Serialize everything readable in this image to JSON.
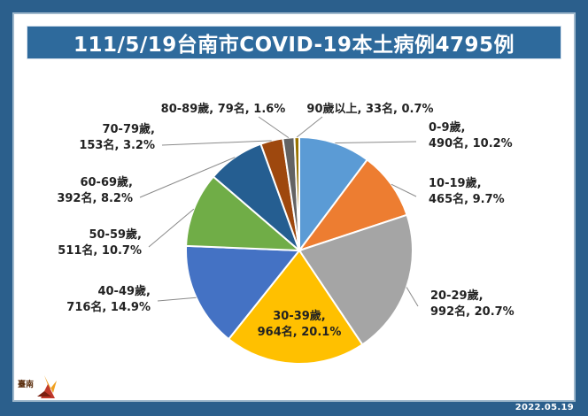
{
  "title": "111/5/19台南市COVID-19本土病例4795例",
  "date": "2022.05.19",
  "logo_text": "臺南",
  "chart_data": {
    "type": "pie",
    "title": "111/5/19台南市COVID-19本土病例4795例",
    "total": 4795,
    "start_angle_deg": 0,
    "direction": "clockwise",
    "slices": [
      {
        "name": "0-9歲",
        "count": "490名",
        "pct": "10.2%",
        "value": 490,
        "color": "#5b9bd5"
      },
      {
        "name": "10-19歲",
        "count": "465名",
        "pct": "9.7%",
        "value": 465,
        "color": "#ed7d31"
      },
      {
        "name": "20-29歲",
        "count": "992名",
        "pct": "20.7%",
        "value": 992,
        "color": "#a5a5a5"
      },
      {
        "name": "30-39歲",
        "count": "964名",
        "pct": "20.1%",
        "value": 964,
        "color": "#ffc000"
      },
      {
        "name": "40-49歲",
        "count": "716名",
        "pct": "14.9%",
        "value": 716,
        "color": "#4472c4"
      },
      {
        "name": "50-59歲",
        "count": "511名",
        "pct": "10.7%",
        "value": 511,
        "color": "#70ad47"
      },
      {
        "name": "60-69歲",
        "count": "392名",
        "pct": "8.2%",
        "value": 392,
        "color": "#255e91"
      },
      {
        "name": "70-79歲",
        "count": "153名",
        "pct": "3.2%",
        "value": 153,
        "color": "#9e480e"
      },
      {
        "name": "80-89歲",
        "count": "79名",
        "pct": "1.6%",
        "value": 79,
        "color": "#636363"
      },
      {
        "name": "90歲以上",
        "count": "33名",
        "pct": "0.7%",
        "value": 33,
        "color": "#997300"
      }
    ]
  }
}
